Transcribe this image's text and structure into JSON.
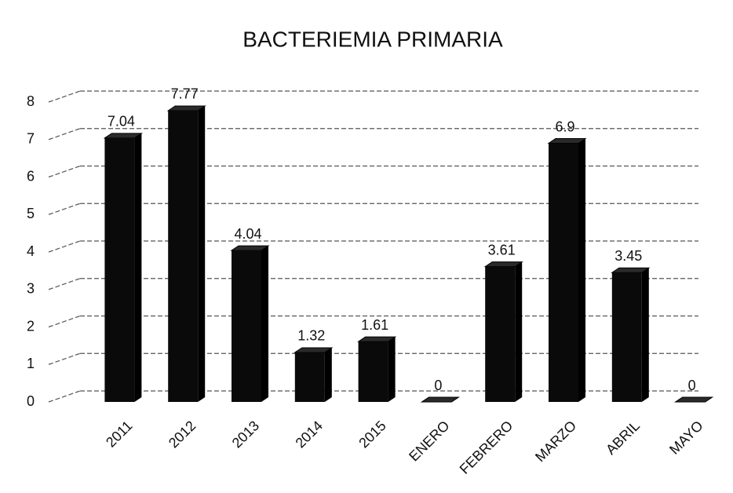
{
  "chart_data": {
    "type": "bar",
    "title": "BACTERIEMIA PRIMARIA",
    "categories": [
      "2011",
      "2012",
      "2013",
      "2014",
      "2015",
      "ENERO",
      "FEBRERO",
      "MARZO",
      "ABRIL",
      "MAYO"
    ],
    "values": [
      7.04,
      7.77,
      4.04,
      1.32,
      1.61,
      0,
      3.61,
      6.9,
      3.45,
      0
    ],
    "color": "#0a0a0a",
    "ylim": [
      0,
      8
    ],
    "yticks": [
      0,
      1,
      2,
      3,
      4,
      5,
      6,
      7,
      8
    ],
    "grid": true
  }
}
